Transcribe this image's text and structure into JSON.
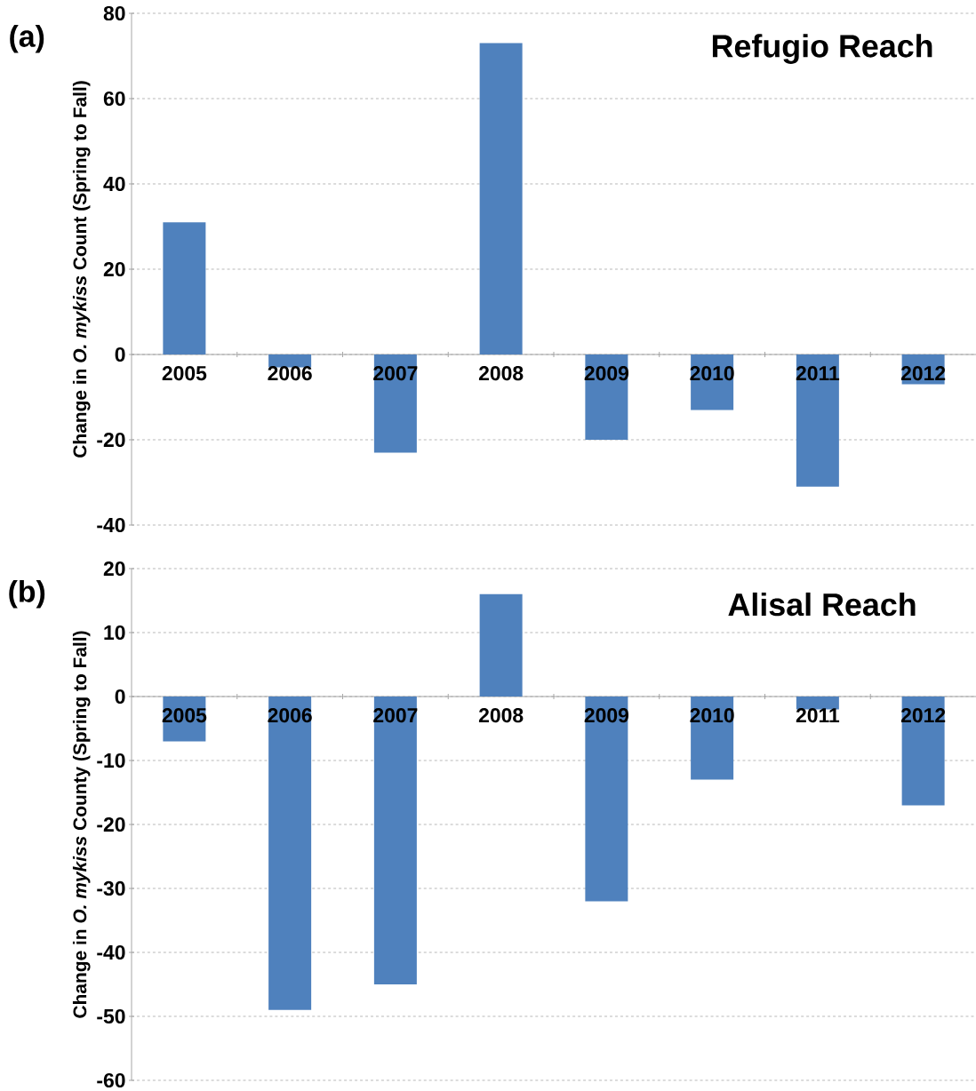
{
  "chart_data": [
    {
      "type": "bar",
      "title": "Refugio Reach",
      "annotations": [
        "(a)"
      ],
      "ylabel": "Change in *O. mykiss* Count (Spring to Fall)",
      "categories": [
        "2005",
        "2006",
        "2007",
        "2008",
        "2009",
        "2010",
        "2011",
        "2012"
      ],
      "values": [
        31,
        -3,
        -23,
        73,
        -20,
        -13,
        -31,
        -7
      ],
      "color": "#4f81bd",
      "ylim": [
        -40,
        80
      ],
      "yticks": [
        -40,
        -20,
        0,
        20,
        40,
        60,
        80
      ],
      "grid": "y"
    },
    {
      "type": "bar",
      "title": "Alisal Reach",
      "annotations": [
        "(b)"
      ],
      "ylabel": "Change in *O. mykiss* County (Spring to Fall)",
      "categories": [
        "2005",
        "2006",
        "2007",
        "2008",
        "2009",
        "2010",
        "2011",
        "2012"
      ],
      "values": [
        -7,
        -49,
        -45,
        16,
        -32,
        -13,
        -2,
        -17
      ],
      "color": "#4f81bd",
      "ylim": [
        -60,
        20
      ],
      "yticks": [
        -60,
        -50,
        -40,
        -30,
        -20,
        -10,
        0,
        10,
        20
      ],
      "grid": "y"
    }
  ]
}
